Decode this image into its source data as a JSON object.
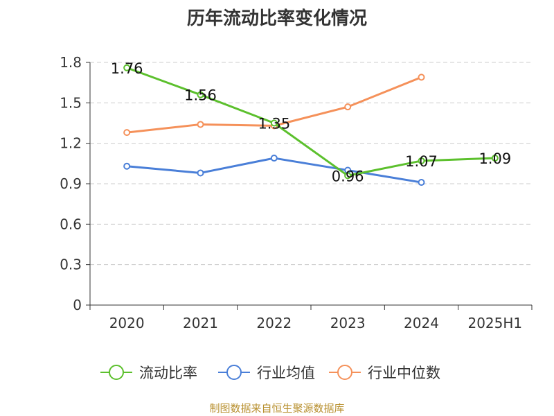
{
  "chart_data": {
    "type": "line",
    "title": "历年流动比率变化情况",
    "categories": [
      "2020",
      "2021",
      "2022",
      "2023",
      "2024",
      "2025H1"
    ],
    "ylim": [
      0,
      1.8
    ],
    "yticks": [
      "0",
      "0.3",
      "0.6",
      "0.9",
      "1.2",
      "1.5",
      "1.8"
    ],
    "grid": "horizontal-dashed",
    "legend_position": "bottom",
    "series": [
      {
        "name": "流动比率",
        "color": "#5cc02d",
        "values": [
          1.76,
          1.56,
          1.35,
          0.96,
          1.07,
          1.09
        ],
        "labels": [
          "1.76",
          "1.56",
          "1.35",
          "0.96",
          "1.07",
          "1.09"
        ]
      },
      {
        "name": "行业均值",
        "color": "#4a7fd8",
        "values": [
          1.03,
          0.98,
          1.09,
          1.0,
          0.91,
          null
        ]
      },
      {
        "name": "行业中位数",
        "color": "#f5915a",
        "values": [
          1.28,
          1.34,
          1.33,
          1.47,
          1.69,
          null
        ]
      }
    ]
  },
  "source": "制图数据来自恒生聚源数据库"
}
